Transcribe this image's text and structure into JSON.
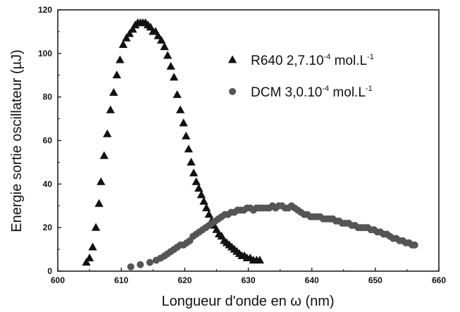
{
  "chart_data": {
    "type": "scatter",
    "xlabel": "Longueur d'onde en ω (nm)",
    "ylabel": "Energie sortie oscillateur (µJ)",
    "xlim": [
      600,
      660
    ],
    "ylim": [
      0,
      120
    ],
    "xticks": [
      "600",
      "610",
      "620",
      "630",
      "640",
      "650",
      "660"
    ],
    "yticks": [
      "0",
      "20",
      "40",
      "60",
      "80",
      "100",
      "120"
    ],
    "grid": false,
    "legend_position": "top-right",
    "series": [
      {
        "name": "R640 2,7.10-4 mol.L-1",
        "legend_main": "R640 2,7.10",
        "legend_exp": "-4",
        "legend_unit": " mol.L",
        "legend_unit_exp": "-1",
        "marker": "triangle",
        "color": "#111111",
        "points": [
          [
            604.5,
            4
          ],
          [
            605.0,
            6
          ],
          [
            605.5,
            11
          ],
          [
            606.0,
            20
          ],
          [
            606.5,
            31
          ],
          [
            606.8,
            41
          ],
          [
            607.3,
            53
          ],
          [
            607.8,
            63
          ],
          [
            608.3,
            74
          ],
          [
            608.8,
            82
          ],
          [
            609.3,
            90
          ],
          [
            609.8,
            97
          ],
          [
            610.3,
            104
          ],
          [
            610.8,
            107
          ],
          [
            611.3,
            109
          ],
          [
            611.8,
            111
          ],
          [
            612.2,
            113
          ],
          [
            612.6,
            114
          ],
          [
            613.0,
            114
          ],
          [
            613.4,
            114
          ],
          [
            613.8,
            114
          ],
          [
            614.2,
            113
          ],
          [
            614.6,
            112
          ],
          [
            615.0,
            110
          ],
          [
            615.4,
            110
          ],
          [
            615.8,
            108
          ],
          [
            616.3,
            106
          ],
          [
            616.8,
            103
          ],
          [
            617.3,
            99
          ],
          [
            617.8,
            94
          ],
          [
            618.3,
            89
          ],
          [
            618.8,
            81
          ],
          [
            619.3,
            74
          ],
          [
            619.8,
            68
          ],
          [
            620.2,
            62
          ],
          [
            620.6,
            56
          ],
          [
            621.0,
            50
          ],
          [
            621.4,
            45
          ],
          [
            621.8,
            41
          ],
          [
            622.2,
            38
          ],
          [
            622.6,
            35
          ],
          [
            623.0,
            32
          ],
          [
            623.4,
            29
          ],
          [
            623.8,
            26
          ],
          [
            624.2,
            23
          ],
          [
            624.6,
            21
          ],
          [
            625.0,
            19
          ],
          [
            625.4,
            17
          ],
          [
            625.8,
            16
          ],
          [
            626.2,
            14
          ],
          [
            626.6,
            13
          ],
          [
            627.0,
            12
          ],
          [
            627.4,
            11
          ],
          [
            627.8,
            10
          ],
          [
            628.2,
            9
          ],
          [
            628.6,
            8
          ],
          [
            629.0,
            7
          ],
          [
            629.4,
            7
          ],
          [
            629.8,
            6
          ],
          [
            630.3,
            6
          ],
          [
            630.8,
            5
          ],
          [
            631.3,
            5
          ],
          [
            631.8,
            5
          ]
        ]
      },
      {
        "name": "DCM 3,0.10-4 mol.L-1",
        "legend_main": "DCM 3,0.10",
        "legend_exp": "-4",
        "legend_unit": " mol.L",
        "legend_unit_exp": "-1",
        "marker": "circle",
        "color": "#555555",
        "points": [
          [
            611.5,
            2
          ],
          [
            613.0,
            3
          ],
          [
            614.5,
            4
          ],
          [
            615.5,
            5
          ],
          [
            616.2,
            6
          ],
          [
            616.8,
            7
          ],
          [
            617.3,
            8
          ],
          [
            617.8,
            9
          ],
          [
            618.3,
            10
          ],
          [
            618.8,
            11
          ],
          [
            619.3,
            12
          ],
          [
            619.8,
            12
          ],
          [
            620.3,
            13
          ],
          [
            620.8,
            14
          ],
          [
            621.3,
            16
          ],
          [
            621.8,
            17
          ],
          [
            622.3,
            18
          ],
          [
            622.8,
            19
          ],
          [
            623.3,
            20
          ],
          [
            623.8,
            21
          ],
          [
            624.3,
            22
          ],
          [
            624.8,
            23
          ],
          [
            625.3,
            24
          ],
          [
            625.8,
            25
          ],
          [
            626.3,
            26
          ],
          [
            626.8,
            26
          ],
          [
            627.3,
            27
          ],
          [
            627.8,
            27
          ],
          [
            628.3,
            28
          ],
          [
            628.8,
            28
          ],
          [
            629.3,
            28
          ],
          [
            629.8,
            29
          ],
          [
            630.3,
            29
          ],
          [
            630.8,
            28
          ],
          [
            631.3,
            29
          ],
          [
            631.8,
            29
          ],
          [
            632.3,
            29
          ],
          [
            632.8,
            29
          ],
          [
            633.3,
            29
          ],
          [
            633.8,
            30
          ],
          [
            634.3,
            29
          ],
          [
            634.8,
            30
          ],
          [
            635.3,
            30
          ],
          [
            635.8,
            29
          ],
          [
            636.3,
            29
          ],
          [
            636.8,
            30
          ],
          [
            637.3,
            29
          ],
          [
            637.8,
            28
          ],
          [
            638.3,
            27
          ],
          [
            638.8,
            26
          ],
          [
            639.3,
            26
          ],
          [
            639.8,
            25
          ],
          [
            640.3,
            25
          ],
          [
            640.8,
            25
          ],
          [
            641.3,
            25
          ],
          [
            641.8,
            24
          ],
          [
            642.3,
            24
          ],
          [
            642.8,
            24
          ],
          [
            643.3,
            24
          ],
          [
            643.8,
            23
          ],
          [
            644.3,
            23
          ],
          [
            644.8,
            22
          ],
          [
            645.3,
            22
          ],
          [
            645.8,
            22
          ],
          [
            646.3,
            21
          ],
          [
            646.8,
            21
          ],
          [
            647.3,
            20
          ],
          [
            647.8,
            20
          ],
          [
            648.3,
            20
          ],
          [
            648.8,
            20
          ],
          [
            649.3,
            19
          ],
          [
            649.8,
            19
          ],
          [
            650.3,
            18
          ],
          [
            650.8,
            18
          ],
          [
            651.3,
            17
          ],
          [
            651.8,
            17
          ],
          [
            652.3,
            16
          ],
          [
            652.8,
            15
          ],
          [
            653.3,
            15
          ],
          [
            653.8,
            14
          ],
          [
            654.3,
            14
          ],
          [
            654.8,
            13
          ],
          [
            655.3,
            13
          ],
          [
            655.8,
            12
          ],
          [
            656.2,
            12
          ]
        ]
      }
    ]
  }
}
